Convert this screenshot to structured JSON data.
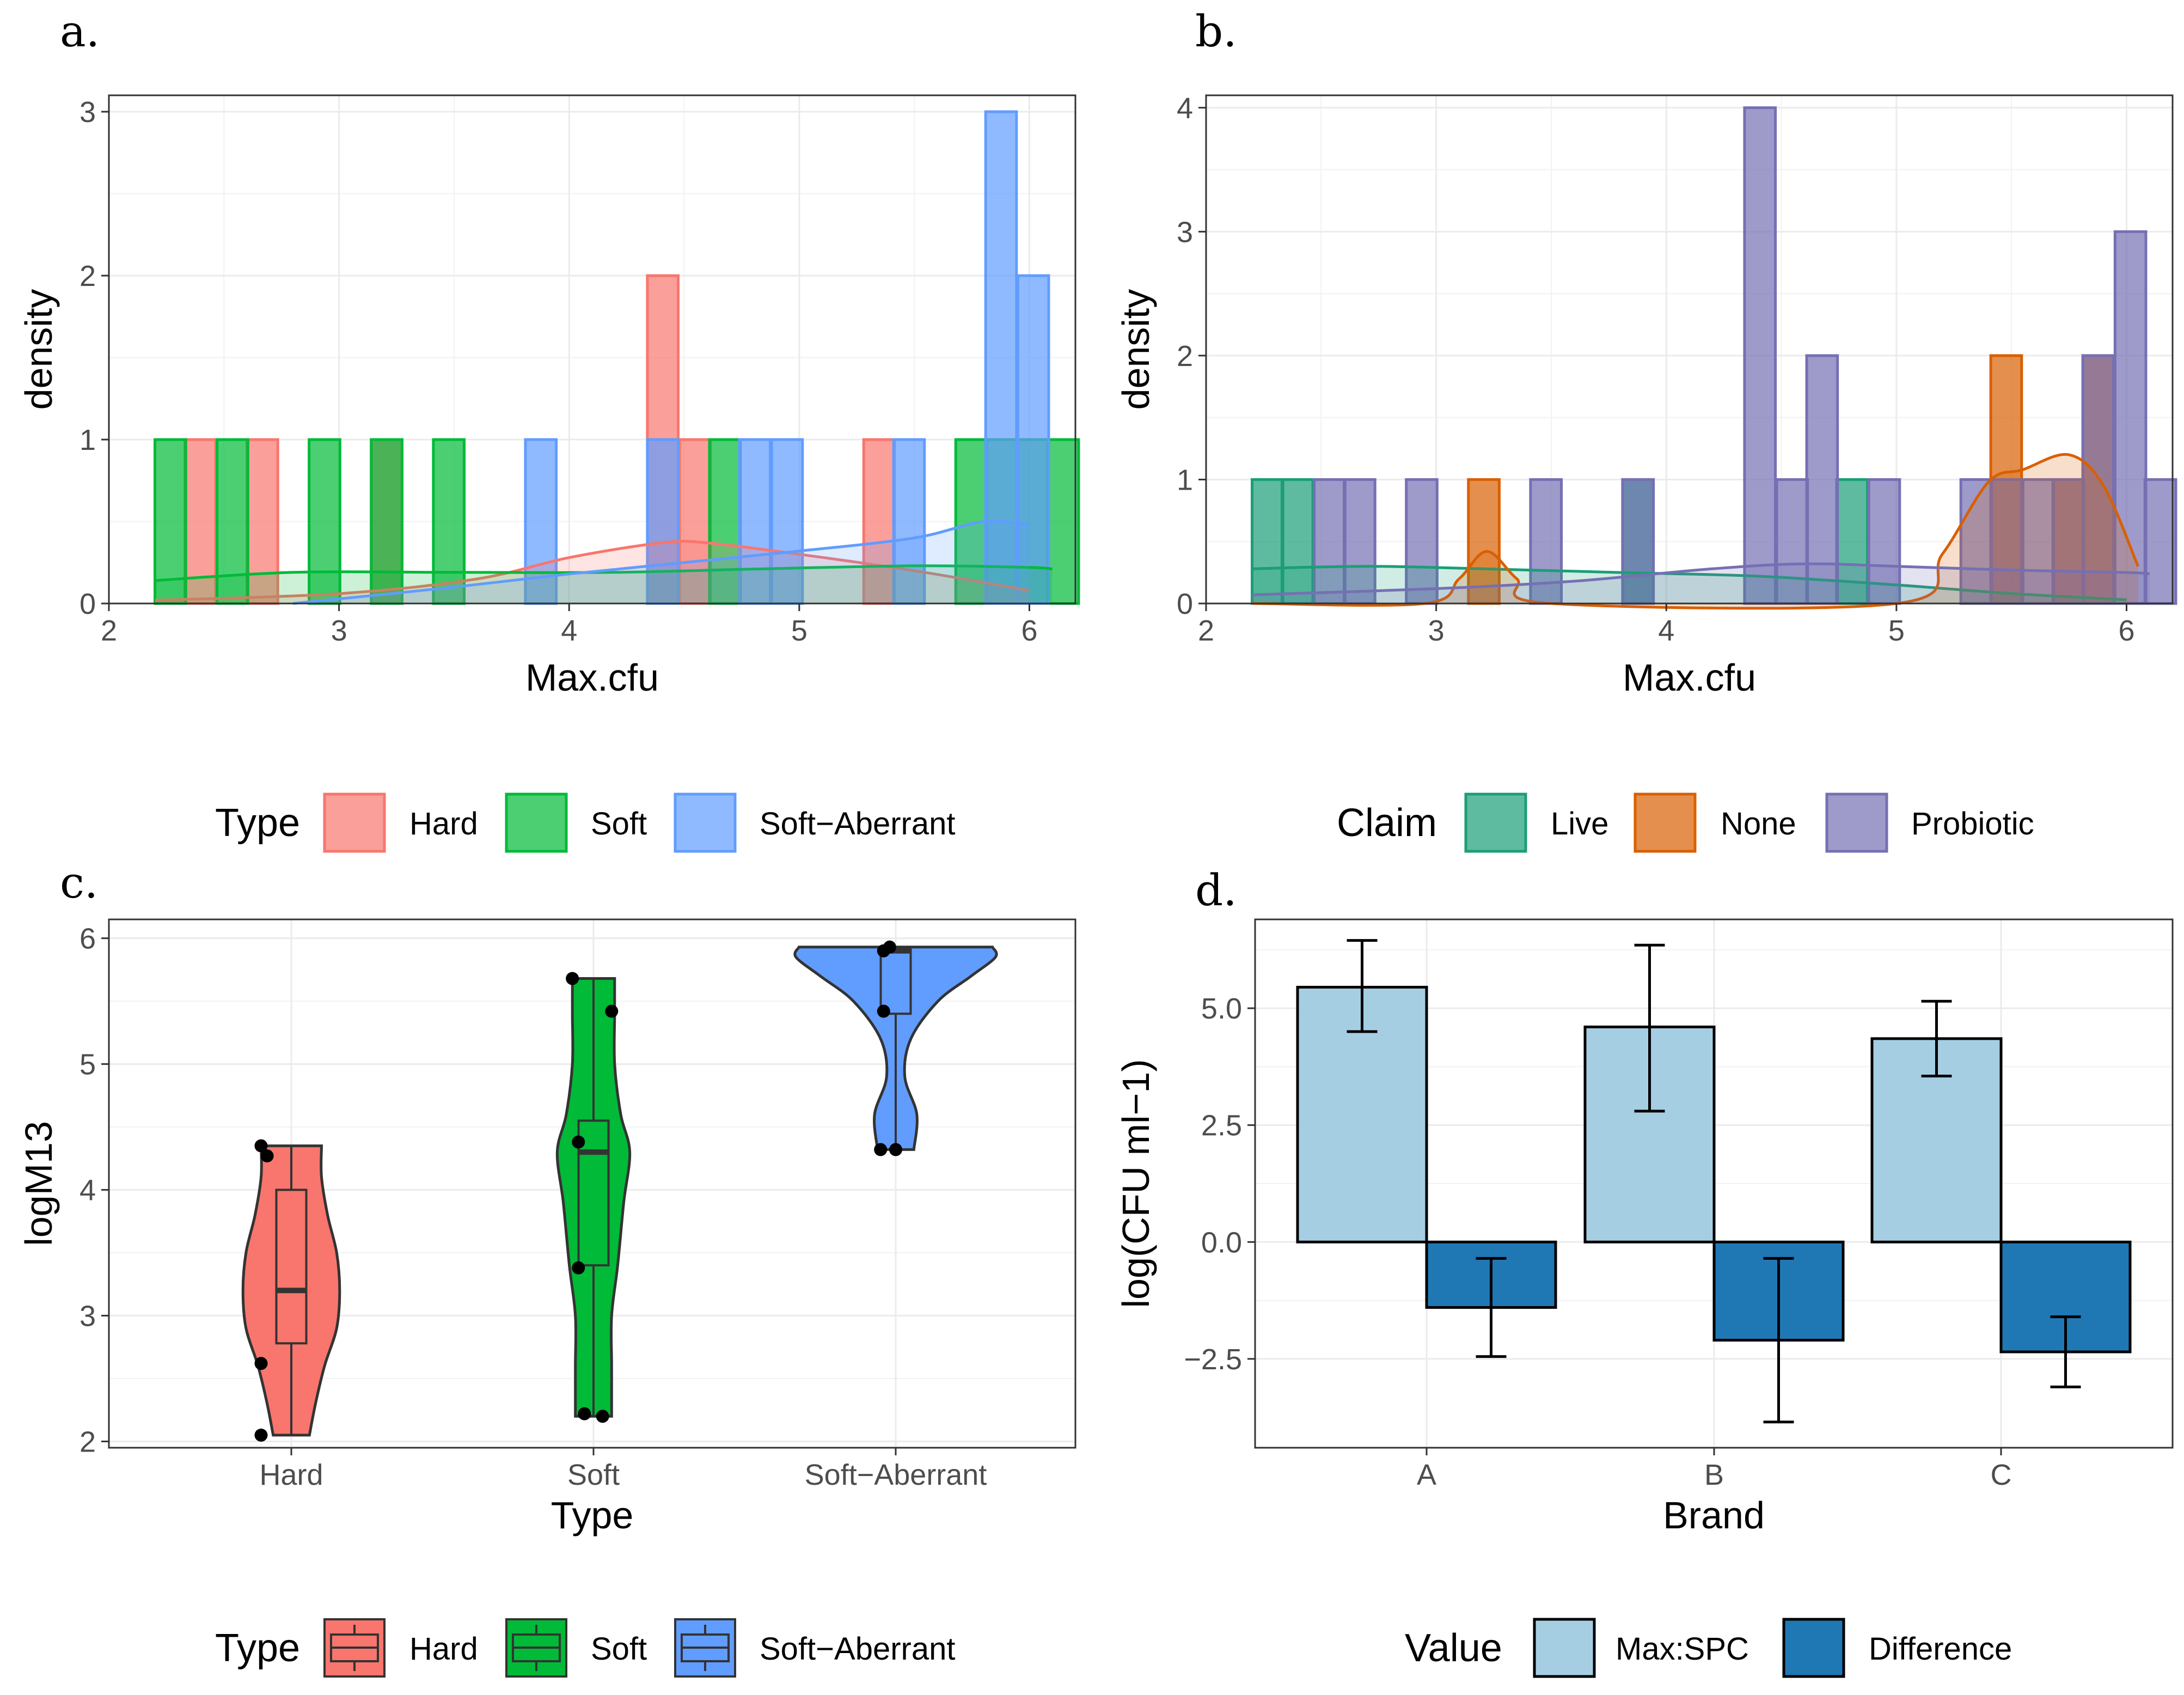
{
  "chart_data": [
    {
      "panel": "a.",
      "type": "histogram",
      "xlabel": "Max.cfu",
      "ylabel": "density",
      "xlim": [
        2.0,
        6.2
      ],
      "ylim": [
        0,
        3.1
      ],
      "xticks": [
        2,
        3,
        4,
        5,
        6
      ],
      "yticks": [
        0,
        1,
        2,
        3
      ],
      "bin_width": 0.134,
      "legend": {
        "title": "Type",
        "position": "bottom",
        "entries": [
          "Hard",
          "Soft",
          "Soft−Aberrant"
        ]
      },
      "series": [
        {
          "name": "Hard",
          "color": "#F8766D",
          "bins": [
            [
              2.33,
              1
            ],
            [
              2.6,
              1
            ],
            [
              3.14,
              1
            ],
            [
              4.34,
              2
            ],
            [
              4.48,
              1
            ],
            [
              5.28,
              1
            ]
          ],
          "density": [
            [
              2.2,
              0.02
            ],
            [
              3.0,
              0.06
            ],
            [
              3.6,
              0.15
            ],
            [
              4.0,
              0.28
            ],
            [
              4.4,
              0.37
            ],
            [
              4.6,
              0.37
            ],
            [
              5.0,
              0.3
            ],
            [
              5.5,
              0.2
            ],
            [
              6.0,
              0.08
            ]
          ]
        },
        {
          "name": "Soft",
          "color": "#00BA38",
          "bins": [
            [
              2.2,
              1
            ],
            [
              2.47,
              1
            ],
            [
              2.87,
              1
            ],
            [
              3.14,
              1
            ],
            [
              3.41,
              1
            ],
            [
              4.61,
              1
            ],
            [
              5.68,
              1
            ],
            [
              5.81,
              1
            ],
            [
              5.95,
              1
            ],
            [
              6.08,
              1
            ]
          ],
          "density": [
            [
              2.2,
              0.14
            ],
            [
              2.8,
              0.19
            ],
            [
              3.5,
              0.19
            ],
            [
              4.2,
              0.19
            ],
            [
              4.8,
              0.21
            ],
            [
              5.5,
              0.23
            ],
            [
              6.0,
              0.22
            ],
            [
              6.1,
              0.21
            ]
          ]
        },
        {
          "name": "Soft−Aberrant",
          "color": "#619CFF",
          "bins": [
            [
              3.81,
              1
            ],
            [
              4.34,
              1
            ],
            [
              4.74,
              1
            ],
            [
              4.88,
              1
            ],
            [
              5.41,
              1
            ],
            [
              5.81,
              3
            ],
            [
              5.95,
              2
            ]
          ],
          "density": [
            [
              2.8,
              0.0
            ],
            [
              3.5,
              0.1
            ],
            [
              4.0,
              0.18
            ],
            [
              4.5,
              0.25
            ],
            [
              5.0,
              0.32
            ],
            [
              5.5,
              0.4
            ],
            [
              5.8,
              0.5
            ],
            [
              6.0,
              0.48
            ]
          ]
        }
      ]
    },
    {
      "panel": "b.",
      "type": "histogram",
      "xlabel": "Max.cfu",
      "ylabel": "density",
      "xlim": [
        2.0,
        6.2
      ],
      "ylim": [
        0,
        4.1
      ],
      "xticks": [
        2,
        3,
        4,
        5,
        6
      ],
      "yticks": [
        0,
        1,
        2,
        3,
        4
      ],
      "bin_width": 0.134,
      "legend": {
        "title": "Claim",
        "position": "bottom",
        "entries": [
          "Live",
          "None",
          "Probiotic"
        ]
      },
      "series": [
        {
          "name": "Live",
          "color": "#1B9E77",
          "bins": [
            [
              2.2,
              1
            ],
            [
              2.33,
              1
            ],
            [
              3.81,
              1
            ],
            [
              4.74,
              1
            ]
          ],
          "density": [
            [
              2.2,
              0.28
            ],
            [
              2.7,
              0.3
            ],
            [
              3.2,
              0.28
            ],
            [
              3.8,
              0.25
            ],
            [
              4.4,
              0.22
            ],
            [
              5.0,
              0.15
            ],
            [
              5.5,
              0.08
            ],
            [
              6.0,
              0.03
            ]
          ]
        },
        {
          "name": "None",
          "color": "#D95F02",
          "bins": [
            [
              3.14,
              1
            ],
            [
              5.41,
              2
            ],
            [
              5.68,
              1
            ],
            [
              5.81,
              2
            ]
          ],
          "density": [
            [
              2.2,
              0.0
            ],
            [
              2.95,
              0.0
            ],
            [
              3.1,
              0.2
            ],
            [
              3.22,
              0.42
            ],
            [
              3.35,
              0.2
            ],
            [
              3.5,
              0.0
            ],
            [
              5.0,
              0.0
            ],
            [
              5.2,
              0.4
            ],
            [
              5.4,
              0.98
            ],
            [
              5.55,
              1.08
            ],
            [
              5.75,
              1.2
            ],
            [
              5.9,
              0.95
            ],
            [
              6.05,
              0.3
            ]
          ]
        },
        {
          "name": "Probiotic",
          "color": "#7570B3",
          "bins": [
            [
              2.47,
              1
            ],
            [
              2.6,
              1
            ],
            [
              2.87,
              1
            ],
            [
              3.41,
              1
            ],
            [
              3.81,
              1
            ],
            [
              4.34,
              4
            ],
            [
              4.48,
              1
            ],
            [
              4.61,
              2
            ],
            [
              4.88,
              1
            ],
            [
              5.28,
              1
            ],
            [
              5.41,
              1
            ],
            [
              5.55,
              1
            ],
            [
              5.68,
              1
            ],
            [
              5.81,
              2
            ],
            [
              5.95,
              3
            ],
            [
              6.08,
              1
            ]
          ],
          "density": [
            [
              2.2,
              0.07
            ],
            [
              3.0,
              0.12
            ],
            [
              3.6,
              0.18
            ],
            [
              4.2,
              0.28
            ],
            [
              4.6,
              0.32
            ],
            [
              5.0,
              0.3
            ],
            [
              5.5,
              0.27
            ],
            [
              6.0,
              0.25
            ],
            [
              6.1,
              0.24
            ]
          ]
        }
      ]
    },
    {
      "panel": "c.",
      "type": "violin",
      "xlabel": "Type",
      "ylabel": "logM13",
      "categories": [
        "Hard",
        "Soft",
        "Soft−Aberrant"
      ],
      "ylim": [
        1.95,
        6.15
      ],
      "yticks": [
        2,
        3,
        4,
        5,
        6
      ],
      "legend": {
        "title": "Type",
        "position": "bottom",
        "entries": [
          "Hard",
          "Soft",
          "Soft−Aberrant"
        ]
      },
      "series": [
        {
          "name": "Hard",
          "color": "#F8766D",
          "box": {
            "min": 2.05,
            "q1": 2.78,
            "median": 3.2,
            "q3": 4.0,
            "max": 4.35
          },
          "points": [
            [
              -0.1,
              4.35
            ],
            [
              -0.08,
              4.27
            ],
            [
              -0.1,
              2.62
            ],
            [
              -0.1,
              2.05
            ]
          ],
          "violin": [
            [
              2.05,
              0.06
            ],
            [
              2.3,
              0.08
            ],
            [
              2.6,
              0.11
            ],
            [
              2.9,
              0.15
            ],
            [
              3.2,
              0.16
            ],
            [
              3.5,
              0.15
            ],
            [
              3.8,
              0.12
            ],
            [
              4.1,
              0.1
            ],
            [
              4.35,
              0.1
            ]
          ]
        },
        {
          "name": "Soft",
          "color": "#00BA38",
          "box": {
            "min": 2.2,
            "q1": 3.4,
            "median": 4.3,
            "q3": 4.55,
            "max": 5.68
          },
          "points": [
            [
              -0.07,
              5.68
            ],
            [
              0.06,
              5.42
            ],
            [
              -0.05,
              4.38
            ],
            [
              -0.05,
              3.38
            ],
            [
              -0.03,
              2.22
            ],
            [
              0.03,
              2.2
            ]
          ],
          "violin": [
            [
              2.2,
              0.06
            ],
            [
              2.6,
              0.06
            ],
            [
              3.0,
              0.06
            ],
            [
              3.4,
              0.08
            ],
            [
              3.9,
              0.1
            ],
            [
              4.3,
              0.12
            ],
            [
              4.6,
              0.09
            ],
            [
              5.0,
              0.07
            ],
            [
              5.4,
              0.07
            ],
            [
              5.68,
              0.07
            ]
          ]
        },
        {
          "name": "Soft−Aberrant",
          "color": "#619CFF",
          "box": {
            "min": 4.32,
            "q1": 5.4,
            "median": 5.9,
            "q3": 5.92,
            "max": 5.93
          },
          "points": [
            [
              -0.04,
              5.9
            ],
            [
              -0.02,
              5.93
            ],
            [
              -0.04,
              5.42
            ],
            [
              -0.05,
              4.32
            ],
            [
              0.0,
              4.32
            ]
          ],
          "violin": [
            [
              4.32,
              0.06
            ],
            [
              4.6,
              0.07
            ],
            [
              4.9,
              0.03
            ],
            [
              5.2,
              0.05
            ],
            [
              5.5,
              0.14
            ],
            [
              5.7,
              0.25
            ],
            [
              5.85,
              0.33
            ],
            [
              5.93,
              0.32
            ]
          ]
        }
      ]
    },
    {
      "panel": "d.",
      "type": "bar",
      "xlabel": "Brand",
      "ylabel": "log(CFU ml−1)",
      "categories": [
        "A",
        "B",
        "C"
      ],
      "ylim": [
        -4.4,
        6.9
      ],
      "yticks": [
        -2.5,
        0.0,
        2.5,
        5.0
      ],
      "ytick_labels": [
        "−2.5",
        "0.0",
        "2.5",
        "5.0"
      ],
      "legend": {
        "title": "Value",
        "position": "bottom",
        "entries": [
          "Max:SPC",
          "Difference"
        ]
      },
      "series": [
        {
          "name": "Max:SPC",
          "color": "#A6CEE3",
          "values": [
            5.45,
            4.6,
            4.35
          ],
          "errors": [
            [
              4.5,
              6.45
            ],
            [
              2.8,
              6.35
            ],
            [
              3.55,
              5.15
            ]
          ]
        },
        {
          "name": "Difference",
          "color": "#1F78B4",
          "values": [
            -1.4,
            -2.1,
            -2.35
          ],
          "errors": [
            [
              -2.45,
              -0.35
            ],
            [
              -3.85,
              -0.35
            ],
            [
              -3.1,
              -1.6
            ]
          ]
        }
      ]
    }
  ]
}
